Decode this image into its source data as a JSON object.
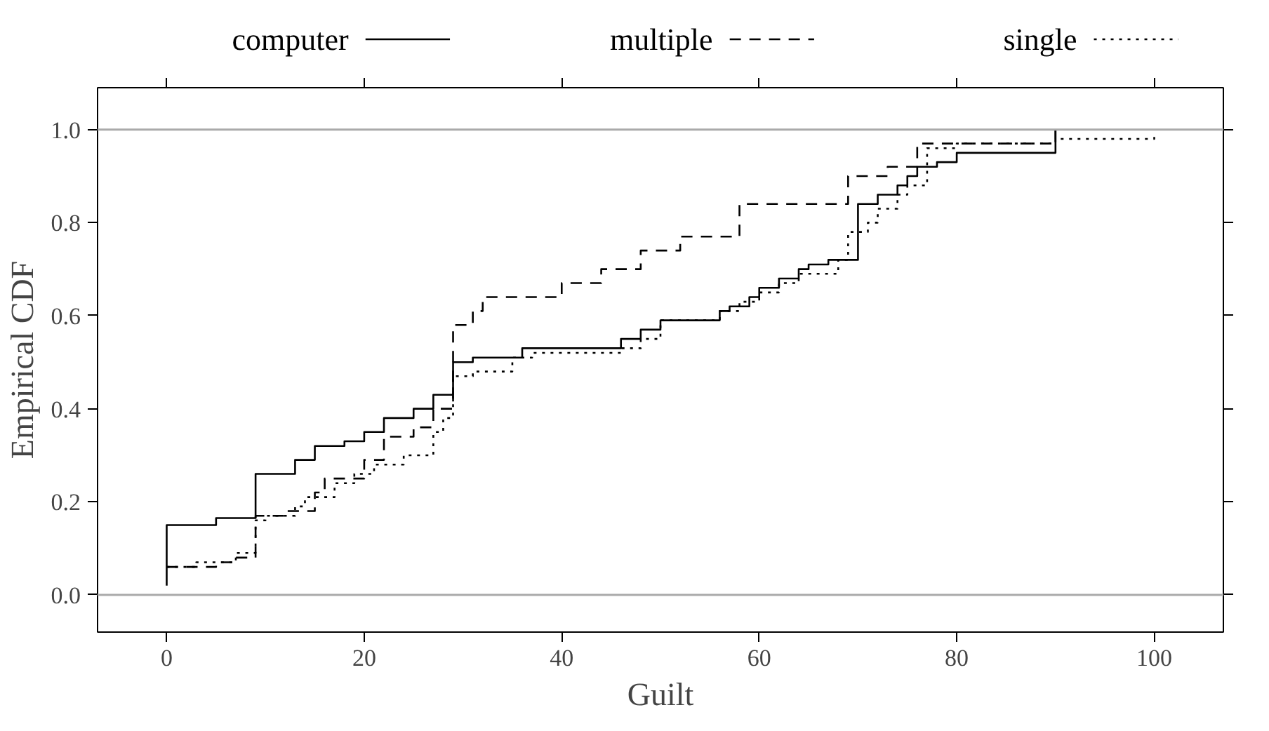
{
  "chart_data": {
    "type": "step",
    "xlabel": "Guilt",
    "ylabel": "Empirical CDF",
    "xlim": [
      -7,
      107
    ],
    "ylim": [
      -0.08,
      1.09
    ],
    "xticks": [
      0,
      20,
      40,
      60,
      80,
      100
    ],
    "yticks": [
      {
        "value": 0,
        "label": "0.0"
      },
      {
        "value": 0.2,
        "label": "0.2"
      },
      {
        "value": 0.4,
        "label": "0.4"
      },
      {
        "value": 0.6,
        "label": "0.6"
      },
      {
        "value": 0.8,
        "label": "0.8"
      },
      {
        "value": 1,
        "label": "1.0"
      }
    ],
    "grid": false,
    "legend": "top",
    "ref_lines": [
      {
        "axis": "y",
        "value": 0,
        "color": "#aaaaaa"
      },
      {
        "axis": "y",
        "value": 1,
        "color": "#aaaaaa"
      }
    ],
    "series": [
      {
        "name": "computer",
        "color": "#000000",
        "line_style": "solid",
        "x": [
          0,
          0,
          5,
          9,
          13,
          15,
          18,
          20,
          22,
          25,
          27,
          29,
          31,
          36,
          46,
          48,
          50,
          56,
          57,
          59,
          60,
          62,
          64,
          65,
          67,
          70,
          72,
          74,
          75,
          76,
          78,
          80,
          90
        ],
        "values": [
          0.02,
          0.15,
          0.165,
          0.26,
          0.29,
          0.32,
          0.33,
          0.35,
          0.38,
          0.4,
          0.43,
          0.5,
          0.51,
          0.53,
          0.55,
          0.57,
          0.59,
          0.61,
          0.62,
          0.64,
          0.66,
          0.68,
          0.7,
          0.71,
          0.72,
          0.84,
          0.86,
          0.88,
          0.9,
          0.92,
          0.93,
          0.95,
          1.0
        ]
      },
      {
        "name": "multiple",
        "color": "#000000",
        "line_style": "dashed",
        "x": [
          0,
          5,
          7,
          9,
          12,
          15,
          16,
          20,
          22,
          25,
          27,
          29,
          31,
          32,
          40,
          44,
          48,
          52,
          58,
          69,
          73,
          76,
          90
        ],
        "values": [
          0.06,
          0.07,
          0.08,
          0.17,
          0.18,
          0.22,
          0.25,
          0.29,
          0.34,
          0.36,
          0.4,
          0.58,
          0.61,
          0.64,
          0.67,
          0.7,
          0.74,
          0.77,
          0.84,
          0.9,
          0.92,
          0.97,
          1.0
        ]
      },
      {
        "name": "single",
        "color": "#000000",
        "line_style": "dotted",
        "x": [
          0,
          3,
          7,
          9,
          10,
          13,
          14,
          17,
          19,
          21,
          24,
          27,
          28,
          29,
          31,
          35,
          37,
          46,
          48,
          50,
          56,
          58,
          60,
          62,
          64,
          68,
          69,
          71,
          72,
          74,
          75,
          77,
          80,
          90,
          100
        ],
        "values": [
          0.06,
          0.07,
          0.09,
          0.16,
          0.17,
          0.19,
          0.21,
          0.24,
          0.26,
          0.28,
          0.3,
          0.35,
          0.38,
          0.47,
          0.48,
          0.51,
          0.52,
          0.53,
          0.55,
          0.59,
          0.61,
          0.63,
          0.65,
          0.67,
          0.69,
          0.72,
          0.78,
          0.8,
          0.83,
          0.86,
          0.88,
          0.96,
          0.97,
          0.98,
          0.99
        ]
      }
    ]
  }
}
